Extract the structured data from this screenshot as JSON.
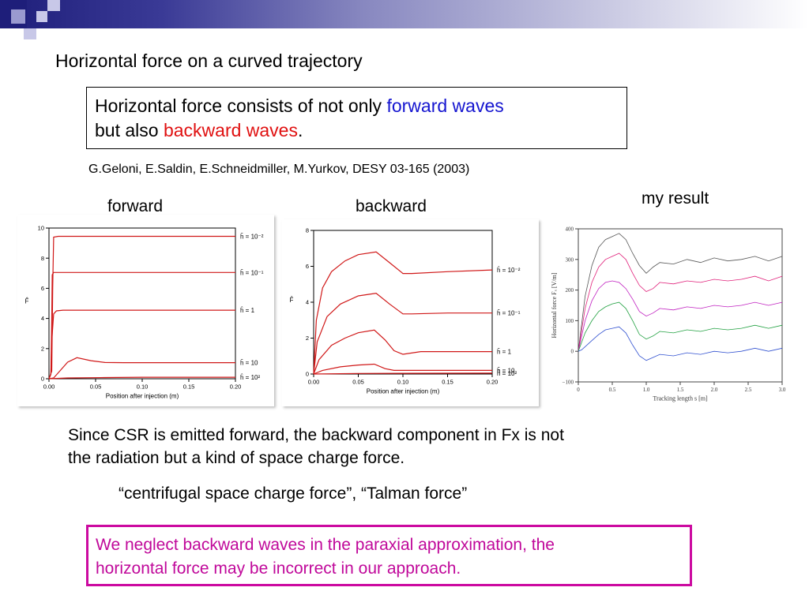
{
  "title": "Horizontal force on a curved trajectory",
  "claim": {
    "prefix": "Horizontal force consists of not only ",
    "forward": "forward waves",
    "line2_prefix": "but also ",
    "backward": "backward waves",
    "suffix": "."
  },
  "citation": "G.Geloni, E.Saldin, E.Schneidmiller, M.Yurkov, DESY 03-165 (2003)",
  "panel_labels": {
    "forward": "forward",
    "backward": "backward",
    "my_result": "my result"
  },
  "body_text": {
    "csr_line1": "Since CSR is emitted forward, the backward component in Fx is not",
    "csr_line2": "the radiation but a kind of space charge force.",
    "force_names": "“centrifugal space charge force”,  “Talman force”"
  },
  "note": {
    "line1": "We neglect backward waves in the paraxial approximation, the",
    "line2": "horizontal force may be incorrect in our approach."
  },
  "colors": {
    "accent_blue": "#1515d0",
    "accent_red": "#e01010",
    "note_magenta": "#cc0aa0",
    "curve_red": "#d01818"
  },
  "chart_data": [
    {
      "type": "line",
      "panel": "forward",
      "xlabel": "Position after injection (m)",
      "ylabel": "F̂",
      "xlim": [
        0,
        0.2
      ],
      "ylim": [
        0,
        10
      ],
      "xticks": [
        "0.00",
        "0.05",
        "0.10",
        "0.15",
        "0.20"
      ],
      "yticks": [
        "0",
        "2",
        "4",
        "6",
        "8",
        "10"
      ],
      "series": [
        {
          "name": "ĥ = 10⁻²",
          "x": [
            0,
            0.003,
            0.004,
            0.005,
            0.01,
            0.2
          ],
          "y": [
            0,
            0.5,
            6,
            9.4,
            9.45,
            9.45
          ]
        },
        {
          "name": "ĥ = 10⁻¹",
          "x": [
            0,
            0.002,
            0.003,
            0.0035,
            0.005,
            0.2
          ],
          "y": [
            0,
            0.3,
            4,
            6.9,
            7.05,
            7.05
          ]
        },
        {
          "name": "ĥ = 1",
          "x": [
            0,
            0.002,
            0.003,
            0.005,
            0.008,
            0.015,
            0.2
          ],
          "y": [
            0,
            0.3,
            2.5,
            4.3,
            4.5,
            4.55,
            4.55
          ]
        },
        {
          "name": "ĥ = 10",
          "x": [
            0,
            0.005,
            0.01,
            0.02,
            0.03,
            0.045,
            0.06,
            0.08,
            0.2
          ],
          "y": [
            0,
            0.05,
            0.4,
            1.1,
            1.4,
            1.2,
            1.08,
            1.07,
            1.07
          ]
        },
        {
          "name": "ĥ = 10²",
          "x": [
            0,
            0.02,
            0.06,
            0.1,
            0.2
          ],
          "y": [
            0,
            0.05,
            0.08,
            0.1,
            0.1
          ]
        }
      ]
    },
    {
      "type": "line",
      "panel": "backward",
      "xlabel": "Position after injection (m)",
      "ylabel": "F̂",
      "xlim": [
        0,
        0.2
      ],
      "ylim": [
        0,
        8
      ],
      "xticks": [
        "0.00",
        "0.05",
        "0.10",
        "0.15",
        "0.20"
      ],
      "yticks": [
        "0",
        "2",
        "4",
        "6",
        "8"
      ],
      "series": [
        {
          "name": "ĥ = 10⁻²",
          "x": [
            0,
            0.003,
            0.01,
            0.02,
            0.035,
            0.05,
            0.07,
            0.085,
            0.1,
            0.11,
            0.15,
            0.2
          ],
          "y": [
            0,
            3,
            4.8,
            5.7,
            6.3,
            6.65,
            6.8,
            6.2,
            5.6,
            5.6,
            5.7,
            5.8
          ]
        },
        {
          "name": "ĥ = 10⁻¹",
          "x": [
            0,
            0.004,
            0.015,
            0.03,
            0.05,
            0.07,
            0.085,
            0.1,
            0.11,
            0.15,
            0.2
          ],
          "y": [
            0,
            1.8,
            3.2,
            3.9,
            4.35,
            4.5,
            3.9,
            3.35,
            3.35,
            3.4,
            3.4
          ]
        },
        {
          "name": "ĥ = 1",
          "x": [
            0,
            0.006,
            0.02,
            0.035,
            0.05,
            0.068,
            0.08,
            0.09,
            0.1,
            0.12,
            0.2
          ],
          "y": [
            0,
            0.8,
            1.6,
            2.0,
            2.3,
            2.45,
            1.9,
            1.3,
            1.1,
            1.25,
            1.25
          ]
        },
        {
          "name": "ĥ = 10",
          "x": [
            0,
            0.01,
            0.03,
            0.05,
            0.068,
            0.08,
            0.09,
            0.1,
            0.2
          ],
          "y": [
            0,
            0.2,
            0.4,
            0.5,
            0.55,
            0.3,
            0.2,
            0.2,
            0.2
          ]
        },
        {
          "name": "ĥ = 10²",
          "x": [
            0,
            0.05,
            0.1,
            0.2
          ],
          "y": [
            0,
            0.03,
            0.04,
            0.05
          ]
        }
      ]
    },
    {
      "type": "line",
      "panel": "my result",
      "xlabel": "Tracking length  s [m]",
      "ylabel": "Horizontal force  Fₓ [V/m]",
      "xlim": [
        0,
        3.0
      ],
      "ylim": [
        -100,
        400
      ],
      "xticks": [
        "0",
        "0.5",
        "1.0",
        "1.5",
        "2.0",
        "2.5",
        "3.0"
      ],
      "yticks": [
        "−100",
        "0",
        "100",
        "200",
        "300",
        "400"
      ],
      "series": [
        {
          "color": "#555555",
          "x": [
            0,
            0.05,
            0.1,
            0.2,
            0.3,
            0.4,
            0.5,
            0.6,
            0.7,
            0.8,
            0.9,
            1.0,
            1.1,
            1.2,
            1.4,
            1.6,
            1.8,
            2.0,
            2.2,
            2.4,
            2.6,
            2.8,
            3.0
          ],
          "y": [
            0,
            90,
            180,
            280,
            340,
            365,
            375,
            385,
            365,
            320,
            280,
            255,
            275,
            290,
            285,
            300,
            290,
            305,
            295,
            300,
            310,
            295,
            310
          ]
        },
        {
          "color": "#e0207a",
          "x": [
            0,
            0.05,
            0.1,
            0.2,
            0.3,
            0.4,
            0.5,
            0.6,
            0.7,
            0.8,
            0.9,
            1.0,
            1.1,
            1.2,
            1.4,
            1.6,
            1.8,
            2.0,
            2.2,
            2.4,
            2.6,
            2.8,
            3.0
          ],
          "y": [
            0,
            70,
            140,
            225,
            275,
            300,
            310,
            320,
            300,
            255,
            215,
            195,
            205,
            225,
            220,
            230,
            225,
            235,
            230,
            235,
            245,
            230,
            245
          ]
        },
        {
          "color": "#c020c0",
          "x": [
            0,
            0.05,
            0.1,
            0.2,
            0.3,
            0.4,
            0.5,
            0.6,
            0.7,
            0.8,
            0.9,
            1.0,
            1.1,
            1.2,
            1.4,
            1.6,
            1.8,
            2.0,
            2.2,
            2.4,
            2.6,
            2.8,
            3.0
          ],
          "y": [
            0,
            50,
            100,
            165,
            205,
            225,
            230,
            225,
            205,
            170,
            130,
            115,
            125,
            140,
            135,
            145,
            140,
            150,
            145,
            150,
            160,
            150,
            160
          ]
        },
        {
          "color": "#20a040",
          "x": [
            0,
            0.05,
            0.1,
            0.2,
            0.3,
            0.4,
            0.5,
            0.6,
            0.7,
            0.8,
            0.9,
            1.0,
            1.1,
            1.2,
            1.4,
            1.6,
            1.8,
            2.0,
            2.2,
            2.4,
            2.6,
            2.8,
            3.0
          ],
          "y": [
            0,
            30,
            60,
            100,
            130,
            145,
            155,
            160,
            140,
            100,
            55,
            40,
            50,
            65,
            60,
            70,
            65,
            75,
            70,
            75,
            85,
            75,
            85
          ]
        },
        {
          "color": "#3050d0",
          "x": [
            0,
            0.05,
            0.1,
            0.2,
            0.3,
            0.4,
            0.5,
            0.6,
            0.7,
            0.8,
            0.9,
            1.0,
            1.1,
            1.2,
            1.4,
            1.6,
            1.8,
            2.0,
            2.2,
            2.4,
            2.6,
            2.8,
            3.0
          ],
          "y": [
            0,
            5,
            15,
            35,
            55,
            70,
            75,
            80,
            60,
            20,
            -15,
            -30,
            -20,
            -10,
            -15,
            -5,
            -10,
            0,
            -5,
            0,
            10,
            0,
            10
          ]
        }
      ]
    }
  ]
}
